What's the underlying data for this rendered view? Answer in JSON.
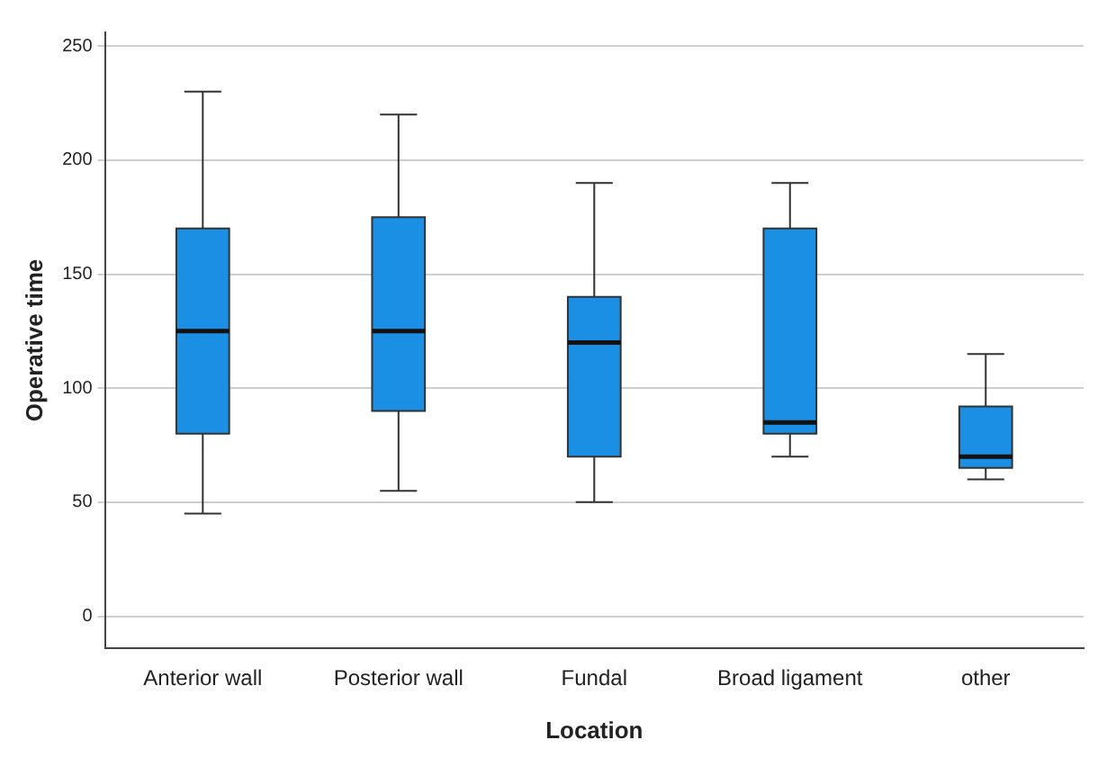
{
  "chart_data": {
    "type": "box",
    "xlabel": "Location",
    "ylabel": "Operative time",
    "categories": [
      "Anterior wall",
      "Posterior wall",
      "Fundal",
      "Broad ligament",
      "other"
    ],
    "color": "#1a8fe3",
    "boxes": [
      {
        "low": 45,
        "q1": 80,
        "median": 125,
        "q3": 170,
        "high": 230
      },
      {
        "low": 55,
        "q1": 90,
        "median": 125,
        "q3": 175,
        "high": 220
      },
      {
        "low": 50,
        "q1": 70,
        "median": 120,
        "q3": 140,
        "high": 190
      },
      {
        "low": 70,
        "q1": 80,
        "median": 85,
        "q3": 170,
        "high": 190
      },
      {
        "low": 60,
        "q1": 65,
        "median": 70,
        "q3": 92,
        "high": 115
      }
    ],
    "ylim": [
      -14,
      256
    ],
    "yticks": [
      0,
      50,
      100,
      150,
      200,
      250
    ],
    "grid": "y",
    "legend": false
  }
}
